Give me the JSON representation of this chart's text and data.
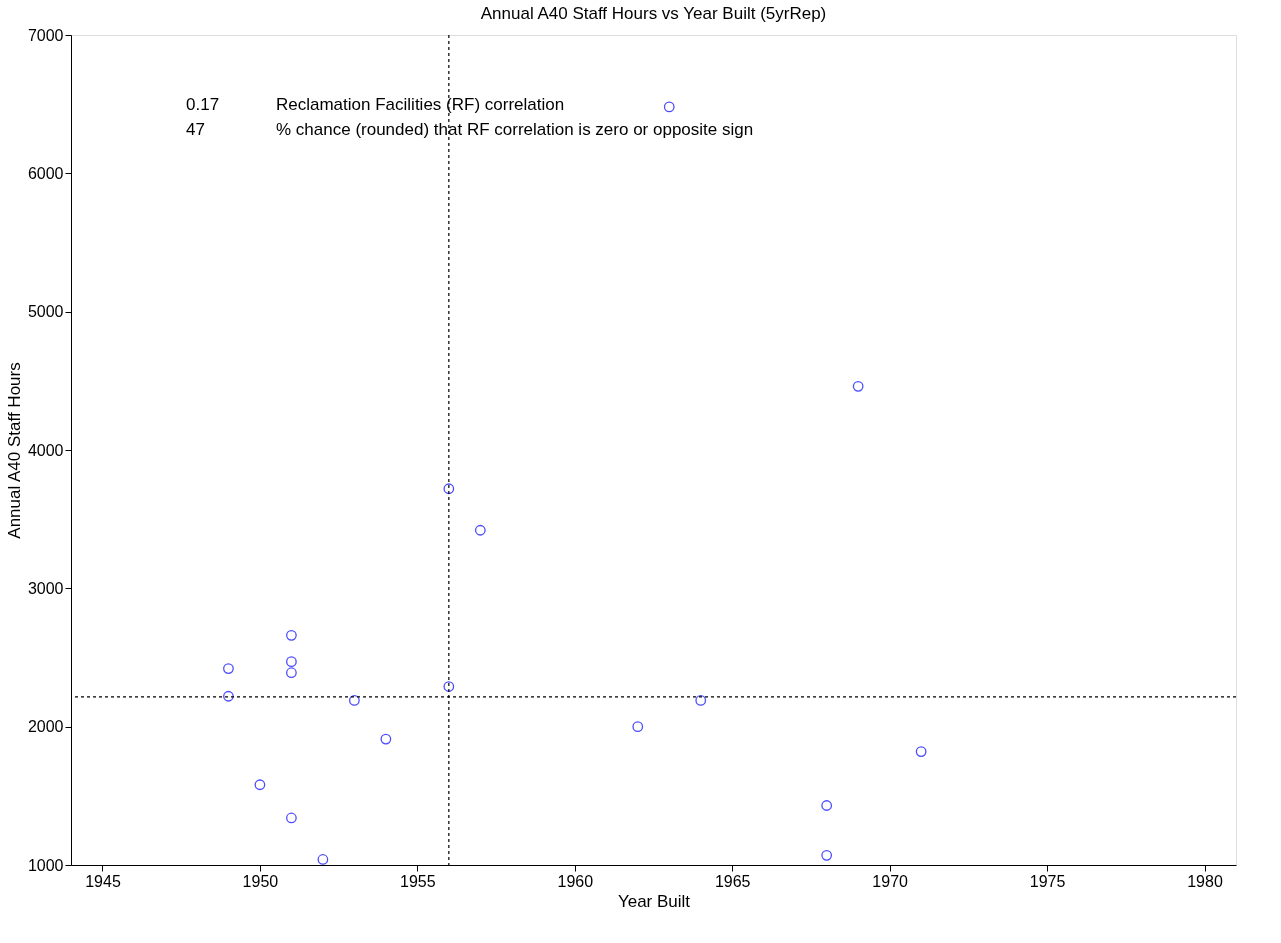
{
  "chart_data": {
    "type": "scatter",
    "title": "Annual A40 Staff Hours vs Year Built (5yrRep)",
    "xlabel": "Year Built",
    "ylabel": "Annual A40 Staff Hours",
    "x": [
      1949,
      1949,
      1950,
      1951,
      1951,
      1951,
      1951,
      1952,
      1953,
      1954,
      1956,
      1956,
      1957,
      1962,
      1963,
      1964,
      1968,
      1968,
      1969,
      1971
    ],
    "series": [
      {
        "color": "#0000ff",
        "values": [
          2420,
          2220,
          1580,
          2660,
          2470,
          2390,
          1340,
          1040,
          2190,
          1910,
          3720,
          2290,
          3420,
          2000,
          6480,
          2190,
          1430,
          1070,
          4460,
          1820
        ]
      }
    ],
    "marker": "circle",
    "xlim": [
      1944,
      1981
    ],
    "xticks": [
      1945,
      1950,
      1955,
      1960,
      1965,
      1970,
      1975,
      1980
    ],
    "ylim": [
      1000,
      7000
    ],
    "yticks": [
      1000,
      2000,
      3000,
      4000,
      5000,
      6000,
      7000
    ],
    "ref_lines": [
      {
        "axis": "x",
        "value": 1956,
        "line_style": "dashed",
        "color": "#000000"
      },
      {
        "axis": "y",
        "value": 2215,
        "line_style": "dashed",
        "color": "#000000"
      }
    ],
    "annotations": [
      "0.17 Reclamation Facilities (RF) correlation",
      "47 % chance (rounded) that RF correlation is zero or opposite sign"
    ]
  }
}
